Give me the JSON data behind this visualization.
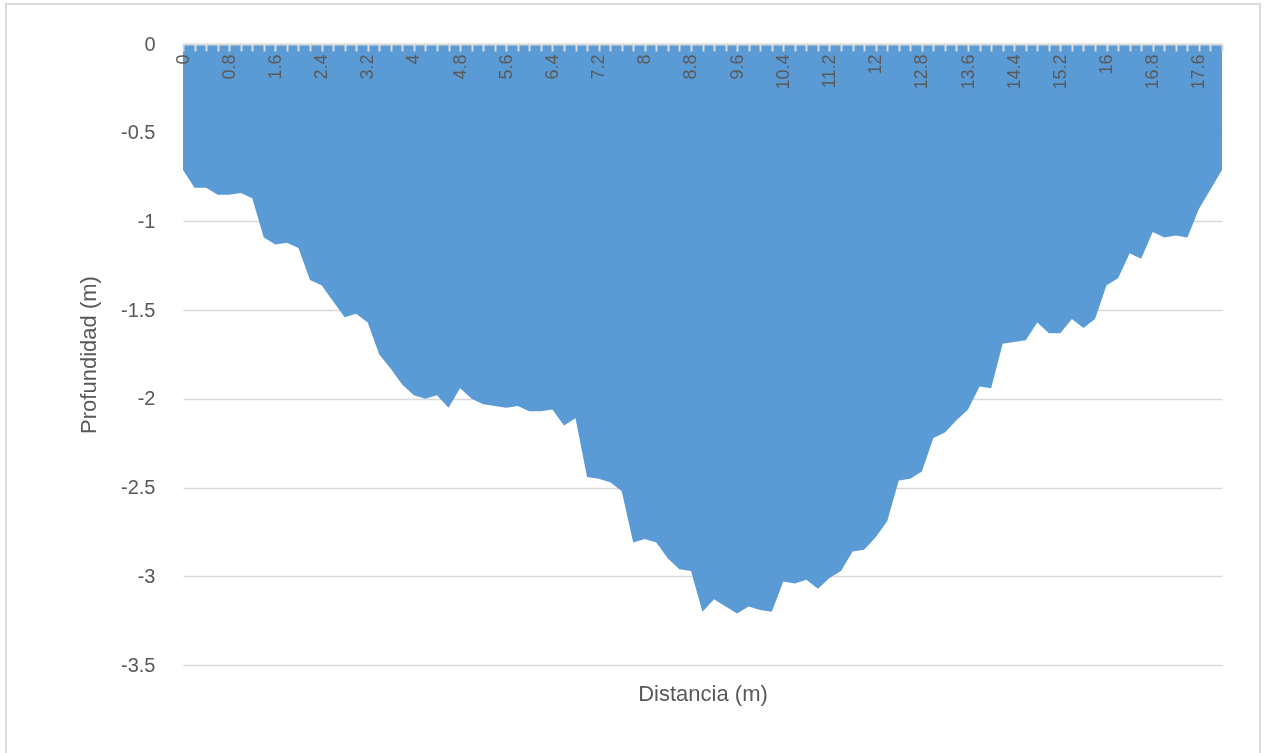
{
  "chart_data": {
    "type": "area",
    "xlabel": "Distancia (m)",
    "ylabel": "Profundidad (m)",
    "x": [
      0,
      0.2,
      0.4,
      0.6,
      0.8,
      1,
      1.2,
      1.4,
      1.6,
      1.8,
      2,
      2.2,
      2.4,
      2.6,
      2.8,
      3,
      3.2,
      3.4,
      3.6,
      3.8,
      4,
      4.2,
      4.4,
      4.6,
      4.8,
      5,
      5.2,
      5.4,
      5.6,
      5.8,
      6,
      6.2,
      6.4,
      6.6,
      6.8,
      7,
      7.2,
      7.4,
      7.6,
      7.8,
      8,
      8.2,
      8.4,
      8.6,
      8.8,
      9,
      9.2,
      9.4,
      9.6,
      9.8,
      10,
      10.2,
      10.4,
      10.6,
      10.8,
      11,
      11.2,
      11.4,
      11.6,
      11.8,
      12,
      12.2,
      12.4,
      12.6,
      12.8,
      13,
      13.2,
      13.4,
      13.6,
      13.8,
      14,
      14.2,
      14.4,
      14.6,
      14.8,
      15,
      15.2,
      15.4,
      15.6,
      15.8,
      16,
      16.2,
      16.4,
      16.6,
      16.8,
      17,
      17.2,
      17.4,
      17.6,
      17.8,
      18
    ],
    "series": [
      {
        "color": "#5b9bd5",
        "values": [
          -0.71,
          -0.81,
          -0.81,
          -0.85,
          -0.85,
          -0.84,
          -0.87,
          -1.09,
          -1.13,
          -1.12,
          -1.15,
          -1.33,
          -1.36,
          -1.45,
          -1.54,
          -1.52,
          -1.57,
          -1.75,
          -1.83,
          -1.92,
          -1.98,
          -2.0,
          -1.98,
          -2.05,
          -1.94,
          -2.0,
          -2.03,
          -2.04,
          -2.05,
          -2.04,
          -2.07,
          -2.07,
          -2.06,
          -2.15,
          -2.11,
          -2.44,
          -2.45,
          -2.47,
          -2.52,
          -2.81,
          -2.79,
          -2.81,
          -2.9,
          -2.96,
          -2.97,
          -3.2,
          -3.13,
          -3.17,
          -3.21,
          -3.17,
          -3.19,
          -3.2,
          -3.03,
          -3.04,
          -3.02,
          -3.07,
          -3.01,
          -2.97,
          -2.86,
          -2.85,
          -2.78,
          -2.69,
          -2.46,
          -2.45,
          -2.41,
          -2.22,
          -2.19,
          -2.12,
          -2.06,
          -1.93,
          -1.94,
          -1.69,
          -1.68,
          -1.67,
          -1.57,
          -1.63,
          -1.63,
          -1.55,
          -1.6,
          -1.55,
          -1.36,
          -1.32,
          -1.18,
          -1.21,
          -1.06,
          -1.09,
          -1.08,
          -1.09,
          -0.93,
          -0.82,
          -0.71
        ]
      }
    ],
    "xlim": [
      0,
      18
    ],
    "xticks": [
      0,
      {
        "value": 0.2,
        "label": null
      },
      {
        "value": 0.4,
        "label": null
      },
      {
        "value": 0.6,
        "label": null
      },
      0.8,
      {
        "value": 1,
        "label": null
      },
      {
        "value": 1.2,
        "label": null
      },
      {
        "value": 1.4,
        "label": null
      },
      1.6,
      {
        "value": 1.8,
        "label": null
      },
      {
        "value": 2,
        "label": null
      },
      {
        "value": 2.2,
        "label": null
      },
      2.4,
      {
        "value": 2.6,
        "label": null
      },
      {
        "value": 2.8,
        "label": null
      },
      {
        "value": 3,
        "label": null
      },
      3.2,
      {
        "value": 3.4,
        "label": null
      },
      {
        "value": 3.6,
        "label": null
      },
      {
        "value": 3.8,
        "label": null
      },
      4,
      {
        "value": 4.2,
        "label": null
      },
      {
        "value": 4.4,
        "label": null
      },
      {
        "value": 4.6,
        "label": null
      },
      4.8,
      {
        "value": 5,
        "label": null
      },
      {
        "value": 5.2,
        "label": null
      },
      {
        "value": 5.4,
        "label": null
      },
      5.6,
      {
        "value": 5.8,
        "label": null
      },
      {
        "value": 6,
        "label": null
      },
      {
        "value": 6.2,
        "label": null
      },
      6.4,
      {
        "value": 6.6,
        "label": null
      },
      {
        "value": 6.8,
        "label": null
      },
      {
        "value": 7,
        "label": null
      },
      7.2,
      {
        "value": 7.4,
        "label": null
      },
      {
        "value": 7.6,
        "label": null
      },
      {
        "value": 7.8,
        "label": null
      },
      8,
      {
        "value": 8.2,
        "label": null
      },
      {
        "value": 8.4,
        "label": null
      },
      {
        "value": 8.6,
        "label": null
      },
      8.8,
      {
        "value": 9,
        "label": null
      },
      {
        "value": 9.2,
        "label": null
      },
      {
        "value": 9.4,
        "label": null
      },
      9.6,
      {
        "value": 9.8,
        "label": null
      },
      {
        "value": 10,
        "label": null
      },
      {
        "value": 10.2,
        "label": null
      },
      10.4,
      {
        "value": 10.6,
        "label": null
      },
      {
        "value": 10.8,
        "label": null
      },
      {
        "value": 11,
        "label": null
      },
      11.2,
      {
        "value": 11.4,
        "label": null
      },
      {
        "value": 11.6,
        "label": null
      },
      {
        "value": 11.8,
        "label": null
      },
      12,
      {
        "value": 12.2,
        "label": null
      },
      {
        "value": 12.4,
        "label": null
      },
      {
        "value": 12.6,
        "label": null
      },
      12.8,
      {
        "value": 13,
        "label": null
      },
      {
        "value": 13.2,
        "label": null
      },
      {
        "value": 13.4,
        "label": null
      },
      13.6,
      {
        "value": 13.8,
        "label": null
      },
      {
        "value": 14,
        "label": null
      },
      {
        "value": 14.2,
        "label": null
      },
      14.4,
      {
        "value": 14.6,
        "label": null
      },
      {
        "value": 14.8,
        "label": null
      },
      {
        "value": 15,
        "label": null
      },
      15.2,
      {
        "value": 15.4,
        "label": null
      },
      {
        "value": 15.6,
        "label": null
      },
      {
        "value": 15.8,
        "label": null
      },
      16,
      {
        "value": 16.2,
        "label": null
      },
      {
        "value": 16.4,
        "label": null
      },
      {
        "value": 16.6,
        "label": null
      },
      16.8,
      {
        "value": 17,
        "label": null
      },
      {
        "value": 17.2,
        "label": null
      },
      {
        "value": 17.4,
        "label": null
      },
      17.6,
      {
        "value": 17.8,
        "label": null
      },
      {
        "value": 18,
        "label": null
      }
    ],
    "ylim": [
      -3.5,
      0
    ],
    "yticks": [
      0,
      -0.5,
      -1,
      -1.5,
      -2,
      -2.5,
      -3,
      -3.5
    ],
    "grid": "y"
  }
}
